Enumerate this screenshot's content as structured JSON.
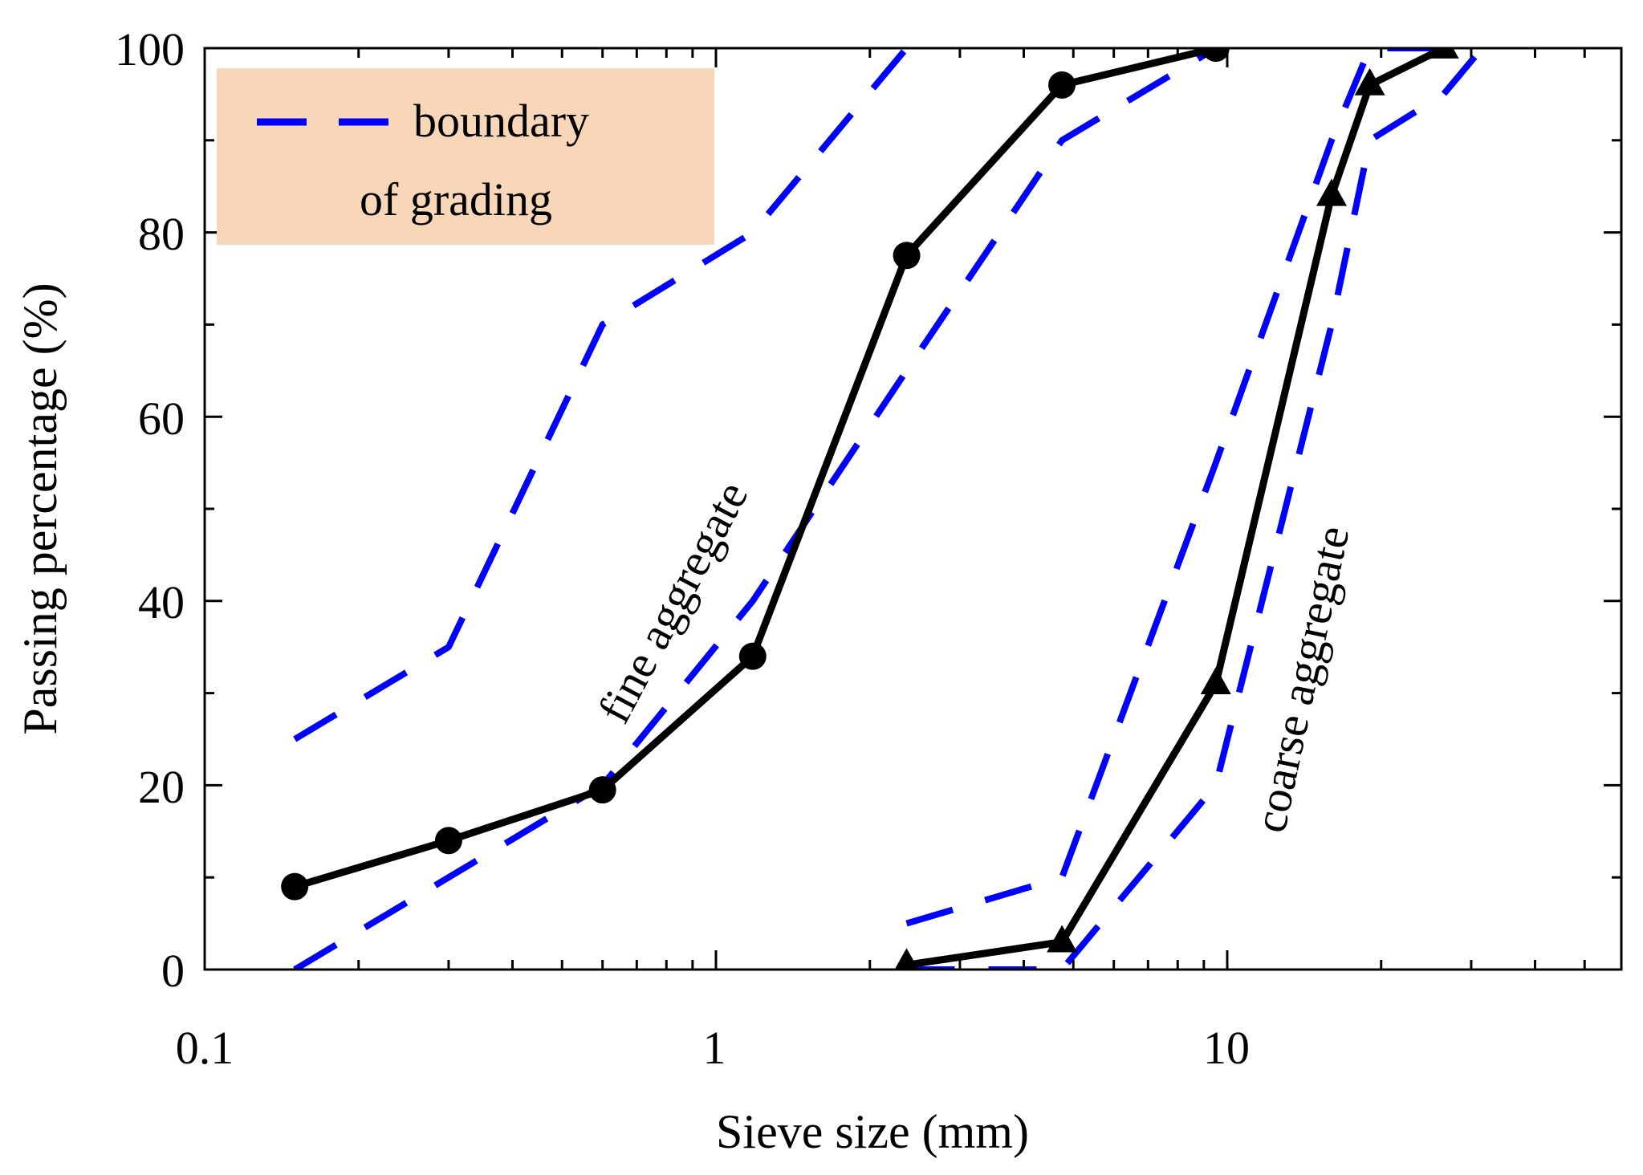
{
  "chart_data": {
    "type": "line",
    "xlabel": "Sieve size (mm)",
    "ylabel": "Passing percentage (%)",
    "xscale": "log",
    "xlim": [
      0.1,
      60
    ],
    "ylim": [
      0,
      100
    ],
    "x_tick_labels": [
      {
        "value": 0.1,
        "label": "0.1"
      },
      {
        "value": 1,
        "label": "1"
      },
      {
        "value": 10,
        "label": "10"
      }
    ],
    "y_tick_labels": [
      {
        "value": 0,
        "label": "0"
      },
      {
        "value": 20,
        "label": "20"
      },
      {
        "value": 40,
        "label": "40"
      },
      {
        "value": 60,
        "label": "60"
      },
      {
        "value": 80,
        "label": "80"
      },
      {
        "value": 100,
        "label": "100"
      }
    ],
    "legend": {
      "line1": "boundary",
      "line2": "of grading",
      "placement": "top-left",
      "color": "#0000ff",
      "background": "#f8d7b8"
    },
    "annotations": {
      "fine": "fine aggregate",
      "coarse": "coarse aggregate"
    },
    "boundaries": [
      {
        "name": "fine upper",
        "x": [
          0.15,
          0.3,
          0.6,
          1.18,
          2.36
        ],
        "y": [
          25,
          35,
          70,
          80,
          100
        ]
      },
      {
        "name": "fine lower",
        "x": [
          0.15,
          0.3,
          0.6,
          1.18,
          2.36,
          4.75,
          9.5
        ],
        "y": [
          0,
          10,
          20,
          40,
          65,
          90,
          100
        ]
      },
      {
        "name": "coarse upper",
        "x": [
          2.36,
          4.75,
          9.5,
          16,
          19,
          26.5
        ],
        "y": [
          5,
          10,
          55,
          90,
          100,
          100
        ]
      },
      {
        "name": "coarse lower",
        "x": [
          2.36,
          4.75,
          9.5,
          16,
          19,
          26.5,
          31.5
        ],
        "y": [
          0,
          0,
          20,
          70,
          90,
          95,
          100
        ]
      }
    ],
    "series": [
      {
        "name": "fine aggregate",
        "marker": "circle",
        "color": "#000000",
        "x": [
          0.15,
          0.3,
          0.6,
          1.18,
          2.36,
          4.75,
          9.5
        ],
        "y": [
          9,
          14,
          19.5,
          34,
          77.5,
          96,
          100
        ]
      },
      {
        "name": "coarse aggregate",
        "marker": "triangle",
        "color": "#000000",
        "x": [
          2.36,
          4.75,
          9.5,
          16,
          19,
          26.5
        ],
        "y": [
          0.5,
          3,
          31,
          84,
          96,
          100
        ]
      }
    ]
  }
}
